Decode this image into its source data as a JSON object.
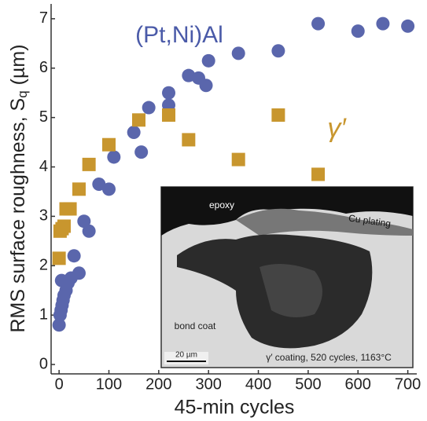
{
  "chart_data": {
    "type": "scatter",
    "xlabel": "45-min cycles",
    "ylabel": {
      "main": "RMS surface roughness, S",
      "sub": "q",
      "unit": " (µm)"
    },
    "xlim": [
      -16,
      718
    ],
    "ylim": [
      -0.19,
      7.3
    ],
    "xticks": [
      0,
      100,
      200,
      300,
      400,
      500,
      600,
      700
    ],
    "yticks": [
      0,
      1,
      2,
      3,
      4,
      5,
      6,
      7
    ],
    "series": [
      {
        "name": "(Pt,Ni)Al",
        "color": "#5a66ac",
        "marker": "circle",
        "x": [
          0,
          2,
          4,
          6,
          8,
          10,
          14,
          18,
          5,
          24,
          30,
          40,
          50,
          60,
          80,
          100,
          110,
          150,
          165,
          180,
          220,
          220,
          260,
          280,
          295,
          300,
          360,
          440,
          520,
          600,
          650,
          700
        ],
        "values": [
          0.8,
          1.0,
          1.1,
          1.2,
          1.3,
          1.4,
          1.5,
          1.65,
          1.7,
          1.75,
          2.2,
          1.85,
          2.9,
          2.7,
          3.65,
          3.55,
          4.2,
          4.7,
          4.3,
          5.2,
          5.5,
          5.25,
          5.85,
          5.8,
          5.65,
          6.15,
          6.3,
          6.35,
          6.9,
          6.75,
          6.9,
          6.85
        ]
      },
      {
        "name": "γ′",
        "color": "#c8962e",
        "marker": "square",
        "x": [
          0,
          2,
          6,
          10,
          14,
          22,
          40,
          60,
          100,
          160,
          220,
          260,
          360,
          440,
          520
        ],
        "values": [
          2.15,
          2.7,
          2.75,
          2.8,
          3.15,
          3.15,
          3.55,
          4.05,
          4.45,
          4.95,
          5.05,
          4.55,
          4.15,
          5.05,
          3.85
        ]
      }
    ],
    "inset": {
      "labels": [
        "epoxy",
        "Cu plating",
        "bond coat",
        "20 µm",
        "γ′ coating, 520 cycles, 1163°C"
      ]
    }
  }
}
